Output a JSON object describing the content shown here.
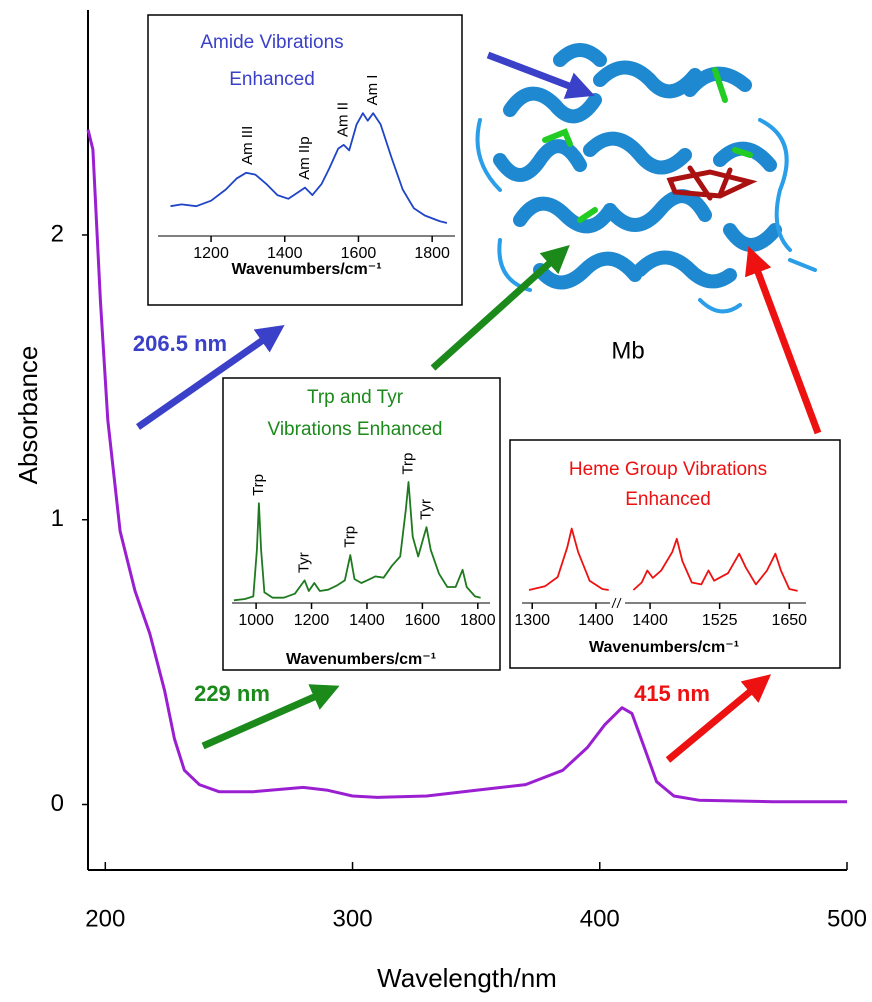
{
  "chart_data": [
    {
      "type": "line",
      "x_label": "Wavelength/nm",
      "y_label": "Absorbance",
      "xlim": [
        193,
        500
      ],
      "xticks": [
        200,
        300,
        400,
        500
      ],
      "ylim": [
        -0.23,
        2.79
      ],
      "yticks": [
        0,
        1,
        2
      ],
      "series": [
        {
          "color": "#9a1fd1",
          "x": [
            193,
            195,
            198,
            201,
            206,
            212,
            218,
            224,
            228,
            232,
            238,
            246,
            260,
            280,
            290,
            300,
            310,
            330,
            350,
            370,
            385,
            395,
            402,
            409,
            413,
            418,
            423,
            430,
            440,
            470,
            500
          ],
          "values": [
            2.37,
            2.3,
            1.77,
            1.35,
            0.96,
            0.75,
            0.6,
            0.4,
            0.23,
            0.12,
            0.07,
            0.045,
            0.045,
            0.06,
            0.05,
            0.03,
            0.025,
            0.03,
            0.05,
            0.07,
            0.12,
            0.2,
            0.28,
            0.34,
            0.32,
            0.2,
            0.08,
            0.03,
            0.015,
            0.01,
            0.01
          ]
        }
      ],
      "labels": [
        {
          "text": "206.5 nm",
          "color": "#3b40c8"
        },
        {
          "text": "229 nm",
          "color": "#1b8a1b"
        },
        {
          "text": "415 nm",
          "color": "#ee1111"
        },
        {
          "text": "Mb",
          "color": "#000000"
        }
      ]
    },
    {
      "type": "line",
      "title": [
        "Amide Vibrations",
        "Enhanced"
      ],
      "title_color": "#3b40c8",
      "x_label": "Wavenumbers/cm⁻¹",
      "xlim": [
        1056,
        1862
      ],
      "xticks": [
        1200,
        1400,
        1600,
        1800
      ],
      "ylim": [
        0,
        1
      ],
      "color": "#1f44c8",
      "x": [
        1090,
        1120,
        1160,
        1200,
        1240,
        1270,
        1295,
        1320,
        1350,
        1380,
        1410,
        1440,
        1455,
        1475,
        1500,
        1520,
        1545,
        1560,
        1575,
        1595,
        1612,
        1625,
        1640,
        1660,
        1690,
        1720,
        1750,
        1780,
        1820,
        1840
      ],
      "values": [
        0.16,
        0.17,
        0.16,
        0.19,
        0.25,
        0.31,
        0.34,
        0.33,
        0.28,
        0.22,
        0.2,
        0.24,
        0.26,
        0.22,
        0.28,
        0.36,
        0.47,
        0.49,
        0.46,
        0.6,
        0.66,
        0.62,
        0.66,
        0.6,
        0.42,
        0.25,
        0.15,
        0.11,
        0.08,
        0.07
      ],
      "annotations": [
        {
          "text": "Am III",
          "x": 1300,
          "y": 0.35
        },
        {
          "text": "Am IIp",
          "x": 1455,
          "y": 0.27
        },
        {
          "text": "Am II",
          "x": 1560,
          "y": 0.5
        },
        {
          "text": "Am I",
          "x": 1640,
          "y": 0.67
        }
      ]
    },
    {
      "type": "line",
      "title": [
        "Trp and Tyr",
        "Vibrations Enhanced"
      ],
      "title_color": "#1b8a1b",
      "x_label": "Wavenumbers/cm⁻¹",
      "xlim": [
        913,
        1844
      ],
      "xticks": [
        1000,
        1200,
        1400,
        1600,
        1800
      ],
      "ylim": [
        0,
        1
      ],
      "color": "#1f7a1f",
      "x": [
        920,
        960,
        990,
        1003,
        1010,
        1018,
        1030,
        1060,
        1100,
        1140,
        1175,
        1190,
        1210,
        1230,
        1260,
        1290,
        1320,
        1340,
        1355,
        1380,
        1400,
        1430,
        1460,
        1490,
        1520,
        1540,
        1550,
        1565,
        1585,
        1605,
        1615,
        1630,
        1660,
        1690,
        1720,
        1745,
        1760,
        1790,
        1810
      ],
      "values": [
        0.02,
        0.03,
        0.05,
        0.4,
        0.75,
        0.4,
        0.08,
        0.04,
        0.04,
        0.07,
        0.17,
        0.09,
        0.15,
        0.09,
        0.1,
        0.13,
        0.17,
        0.36,
        0.18,
        0.15,
        0.17,
        0.2,
        0.19,
        0.28,
        0.35,
        0.7,
        0.91,
        0.5,
        0.35,
        0.5,
        0.57,
        0.4,
        0.22,
        0.12,
        0.12,
        0.25,
        0.12,
        0.05,
        0.04
      ],
      "annotations": [
        {
          "text": "Trp",
          "x": 1010,
          "y": 0.76
        },
        {
          "text": "Tyr",
          "x": 1175,
          "y": 0.18
        },
        {
          "text": "Trp",
          "x": 1340,
          "y": 0.37
        },
        {
          "text": "Trp",
          "x": 1550,
          "y": 0.92
        },
        {
          "text": "Tyr",
          "x": 1615,
          "y": 0.58
        }
      ]
    },
    {
      "type": "line",
      "title": [
        "Heme Group Vibrations",
        "Enhanced"
      ],
      "title_color": "#ee1111",
      "x_label": "Wavenumbers/cm⁻¹",
      "ylim": [
        0,
        1
      ],
      "color": "#ee1111",
      "segments": [
        {
          "xlim": [
            1284,
            1422
          ],
          "xticks": [
            1300,
            1400
          ],
          "x": [
            1295,
            1320,
            1340,
            1355,
            1362,
            1372,
            1390,
            1410,
            1420
          ],
          "values": [
            0.14,
            0.18,
            0.28,
            0.6,
            0.8,
            0.55,
            0.24,
            0.15,
            0.14
          ]
        },
        {
          "xlim": [
            1355,
            1680
          ],
          "xticks": [
            1400,
            1525,
            1650
          ],
          "x": [
            1370,
            1385,
            1395,
            1405,
            1420,
            1440,
            1448,
            1458,
            1475,
            1492,
            1505,
            1515,
            1540,
            1560,
            1572,
            1590,
            1610,
            1625,
            1635,
            1650,
            1665
          ],
          "values": [
            0.14,
            0.22,
            0.35,
            0.27,
            0.35,
            0.55,
            0.69,
            0.45,
            0.22,
            0.2,
            0.35,
            0.24,
            0.32,
            0.53,
            0.38,
            0.2,
            0.35,
            0.53,
            0.35,
            0.15,
            0.13
          ]
        }
      ]
    }
  ]
}
